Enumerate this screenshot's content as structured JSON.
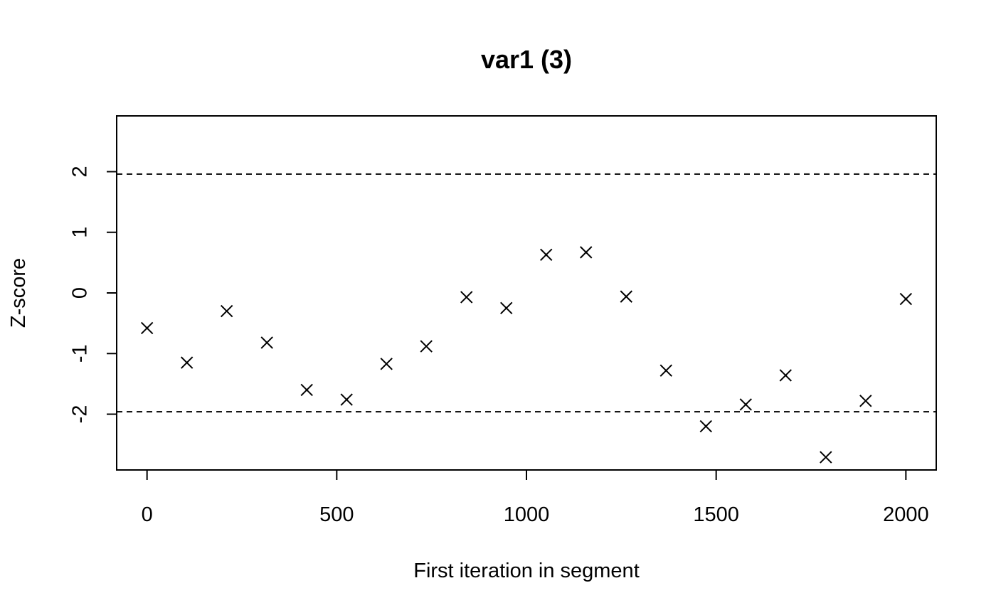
{
  "chart_data": {
    "type": "scatter",
    "title": "var1 (3)",
    "xlabel": "First iteration in segment",
    "ylabel": "Z-score",
    "xlim": [
      -80,
      2080
    ],
    "ylim": [
      -2.92,
      2.92
    ],
    "xticks": [
      0,
      500,
      1000,
      1500,
      2000
    ],
    "yticks": [
      -2,
      -1,
      0,
      1,
      2
    ],
    "xtick_labels": [
      "0",
      "500",
      "1000",
      "1500",
      "2000"
    ],
    "ytick_labels": [
      "-2",
      "-1",
      "0",
      "1",
      "2"
    ],
    "reference_lines": [
      1.96,
      -1.96
    ],
    "marker": "x",
    "grid": false,
    "points": [
      {
        "x": 0,
        "y": -0.58
      },
      {
        "x": 105,
        "y": -1.15
      },
      {
        "x": 210,
        "y": -0.3
      },
      {
        "x": 316,
        "y": -0.82
      },
      {
        "x": 421,
        "y": -1.6
      },
      {
        "x": 526,
        "y": -1.76
      },
      {
        "x": 631,
        "y": -1.17
      },
      {
        "x": 736,
        "y": -0.88
      },
      {
        "x": 842,
        "y": -0.07
      },
      {
        "x": 947,
        "y": -0.25
      },
      {
        "x": 1052,
        "y": 0.63
      },
      {
        "x": 1157,
        "y": 0.67
      },
      {
        "x": 1263,
        "y": -0.06
      },
      {
        "x": 1368,
        "y": -1.28
      },
      {
        "x": 1473,
        "y": -2.2
      },
      {
        "x": 1578,
        "y": -1.84
      },
      {
        "x": 1683,
        "y": -1.36
      },
      {
        "x": 1789,
        "y": -2.71
      },
      {
        "x": 1894,
        "y": -1.78
      },
      {
        "x": 2000,
        "y": -0.1
      }
    ]
  }
}
